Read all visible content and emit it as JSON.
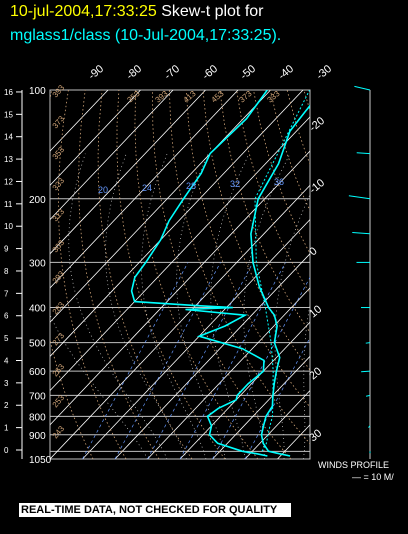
{
  "header": {
    "date_label": "10-jul-2004,17:33:25",
    "plot_label": "Skew-t plot for",
    "subtitle": "mglass1/class (10-Jul-2004,17:33:25)."
  },
  "footer": {
    "qc_notice": "REAL-TIME DATA, NOT CHECKED FOR QUALITY"
  },
  "winds": {
    "title": "WINDS PROFILE",
    "scale": "— = 10 M/"
  },
  "colors": {
    "sounding": "#00ffff",
    "isotherm": "#ffffff",
    "adiabat": "#d2a679",
    "mixing": "#6699ff",
    "grid": "#c0c0c0"
  },
  "chart_data": {
    "type": "line",
    "title": "Skew-t plot for mglass1/class (10-Jul-2004,17:33:25).",
    "pressure_levels": [
      100,
      200,
      300,
      400,
      500,
      600,
      700,
      800,
      900,
      1000,
      1050
    ],
    "pressure_labels": [
      "100",
      "200",
      "300",
      "400",
      "500",
      "600",
      "700",
      "800",
      "900",
      "",
      "1050"
    ],
    "left_axis_labels": [
      "0",
      "1",
      "2",
      "3",
      "4",
      "5",
      "6",
      "7",
      "8",
      "9",
      "10",
      "11",
      "12",
      "13",
      "14",
      "15",
      "16"
    ],
    "top_temp_labels": [
      "-90",
      "-80",
      "-70",
      "-60",
      "-50",
      "-40",
      "-30"
    ],
    "right_temp_labels": [
      "-20",
      "-10",
      "0",
      "10",
      "20",
      "30"
    ],
    "mixing_ratio_labels": [
      "20",
      "24",
      "28",
      "32",
      "36"
    ],
    "adiabat_labels": [
      "393",
      "373",
      "353",
      "333",
      "313",
      "303",
      "293",
      "283",
      "273",
      "263",
      "253",
      "243"
    ],
    "theta_e_labels": [
      "353",
      "393",
      "413",
      "453",
      "373",
      "333"
    ],
    "series": [
      {
        "name": "Temperature",
        "points": [
          [
            100,
            -64
          ],
          [
            115,
            -63
          ],
          [
            130,
            -62
          ],
          [
            160,
            -56
          ],
          [
            200,
            -52
          ],
          [
            250,
            -44
          ],
          [
            300,
            -35
          ],
          [
            350,
            -26
          ],
          [
            400,
            -17
          ],
          [
            420,
            -13
          ],
          [
            450,
            -9
          ],
          [
            500,
            -5
          ],
          [
            550,
            1
          ],
          [
            600,
            4
          ],
          [
            650,
            7
          ],
          [
            700,
            10
          ],
          [
            750,
            13
          ],
          [
            800,
            14
          ],
          [
            850,
            16
          ],
          [
            900,
            18
          ],
          [
            950,
            21
          ],
          [
            1000,
            25
          ],
          [
            1015,
            29
          ],
          [
            1030,
            33
          ]
        ]
      },
      {
        "name": "Dew point",
        "points": [
          [
            100,
            -81
          ],
          [
            120,
            -79
          ],
          [
            150,
            -80
          ],
          [
            170,
            -77
          ],
          [
            200,
            -75
          ],
          [
            230,
            -73
          ],
          [
            260,
            -70
          ],
          [
            300,
            -68
          ],
          [
            330,
            -67
          ],
          [
            360,
            -64
          ],
          [
            385,
            -60
          ],
          [
            395,
            -40
          ],
          [
            400,
            -28
          ],
          [
            405,
            -42
          ],
          [
            420,
            -22
          ],
          [
            450,
            -25
          ],
          [
            480,
            -30
          ],
          [
            520,
            -13
          ],
          [
            560,
            -3
          ],
          [
            600,
            0
          ],
          [
            650,
            -1
          ],
          [
            700,
            -1
          ],
          [
            720,
            0
          ],
          [
            760,
            -3
          ],
          [
            800,
            -4
          ],
          [
            850,
            0
          ],
          [
            900,
            2
          ],
          [
            950,
            7
          ],
          [
            1000,
            17
          ],
          [
            1015,
            22
          ],
          [
            1030,
            26
          ]
        ]
      },
      {
        "name": "Parcel",
        "points": [
          [
            1000,
            23
          ],
          [
            950,
            22
          ],
          [
            900,
            20
          ],
          [
            850,
            18
          ],
          [
            800,
            16
          ],
          [
            700,
            10
          ],
          [
            600,
            3
          ],
          [
            500,
            -6
          ],
          [
            400,
            -18
          ],
          [
            300,
            -34
          ],
          [
            200,
            -53
          ],
          [
            100,
            -68
          ]
        ]
      }
    ],
    "winds": [
      {
        "p": 100,
        "speed_ms": 20,
        "dir": 300
      },
      {
        "p": 150,
        "speed_ms": 15,
        "dir": 280
      },
      {
        "p": 200,
        "speed_ms": 25,
        "dir": 290
      },
      {
        "p": 250,
        "speed_ms": 20,
        "dir": 280
      },
      {
        "p": 300,
        "speed_ms": 15,
        "dir": 270
      },
      {
        "p": 400,
        "speed_ms": 10,
        "dir": 270
      },
      {
        "p": 500,
        "speed_ms": 5,
        "dir": 250
      },
      {
        "p": 600,
        "speed_ms": 10,
        "dir": 260
      },
      {
        "p": 700,
        "speed_ms": 5,
        "dir": 240
      },
      {
        "p": 850,
        "speed_ms": 5,
        "dir": 200
      },
      {
        "p": 1000,
        "speed_ms": 5,
        "dir": 180
      }
    ],
    "ylim": [
      1050,
      100
    ],
    "xlim": [
      -40,
      40
    ],
    "grid": true
  }
}
